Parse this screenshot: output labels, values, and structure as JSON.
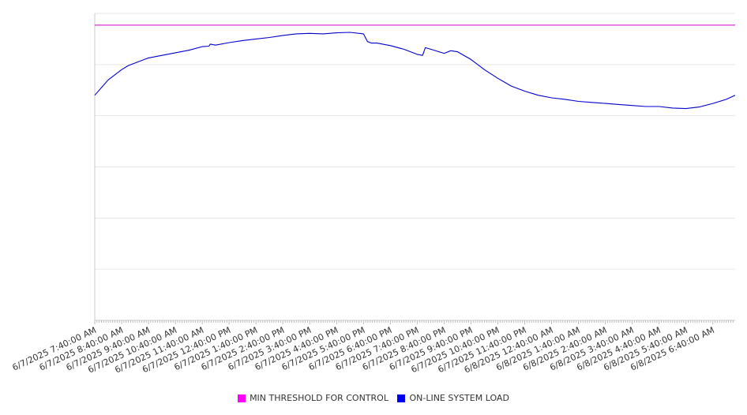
{
  "chart_data": {
    "type": "line",
    "title": "",
    "xlabel": "",
    "ylabel": "",
    "ylim": [
      0,
      6
    ],
    "grid": true,
    "legend_position": "bottom",
    "x_tick_labels": [
      "6/7/2025 7:40:00 AM",
      "6/7/2025 8:40:00 AM",
      "6/7/2025 9:40:00 AM",
      "6/7/2025 10:40:00 AM",
      "6/7/2025 11:40:00 AM",
      "6/7/2025 12:40:00 PM",
      "6/7/2025 1:40:00 PM",
      "6/7/2025 2:40:00 PM",
      "6/7/2025 3:40:00 PM",
      "6/7/2025 4:40:00 PM",
      "6/7/2025 5:40:00 PM",
      "6/7/2025 6:40:00 PM",
      "6/7/2025 7:40:00 PM",
      "6/7/2025 8:40:00 PM",
      "6/7/2025 9:40:00 PM",
      "6/7/2025 10:40:00 PM",
      "6/7/2025 11:40:00 PM",
      "6/8/2025 12:40:00 AM",
      "6/8/2025 1:40:00 AM",
      "6/8/2025 2:40:00 AM",
      "6/8/2025 3:40:00 AM",
      "6/8/2025 4:40:00 AM",
      "6/8/2025 5:40:00 AM",
      "6/8/2025 6:40:00 AM"
    ],
    "series": [
      {
        "name": "MIN THRESHOLD FOR CONTROL",
        "color": "#cc00cc",
        "x": [
          0,
          23.83
        ],
        "y": [
          5.77,
          5.77
        ]
      },
      {
        "name": "ON-LINE SYSTEM LOAD",
        "color": "#0000cc",
        "x": [
          0,
          0.25,
          0.5,
          0.75,
          1.0,
          1.25,
          1.5,
          2.0,
          2.5,
          3.0,
          3.5,
          4.0,
          4.25,
          4.3,
          4.5,
          5.0,
          5.5,
          6.0,
          6.5,
          7.0,
          7.5,
          8.0,
          8.5,
          9.0,
          9.5,
          10.0,
          10.15,
          10.3,
          10.5,
          11.0,
          11.5,
          12.0,
          12.2,
          12.3,
          12.5,
          13.0,
          13.25,
          13.5,
          14.0,
          14.5,
          15.0,
          15.5,
          16.0,
          16.5,
          17.0,
          17.5,
          18.0,
          18.5,
          19.0,
          19.5,
          20.0,
          20.5,
          21.0,
          21.5,
          22.0,
          22.5,
          23.0,
          23.5,
          23.83
        ],
        "y": [
          4.4,
          4.55,
          4.7,
          4.8,
          4.9,
          4.98,
          5.03,
          5.13,
          5.18,
          5.23,
          5.28,
          5.35,
          5.36,
          5.4,
          5.38,
          5.43,
          5.47,
          5.5,
          5.53,
          5.57,
          5.6,
          5.61,
          5.6,
          5.62,
          5.63,
          5.6,
          5.45,
          5.42,
          5.42,
          5.37,
          5.3,
          5.2,
          5.18,
          5.33,
          5.3,
          5.22,
          5.27,
          5.25,
          5.1,
          4.9,
          4.73,
          4.58,
          4.48,
          4.4,
          4.35,
          4.32,
          4.28,
          4.26,
          4.24,
          4.22,
          4.2,
          4.18,
          4.18,
          4.15,
          4.14,
          4.17,
          4.24,
          4.32,
          4.4
        ]
      }
    ]
  }
}
